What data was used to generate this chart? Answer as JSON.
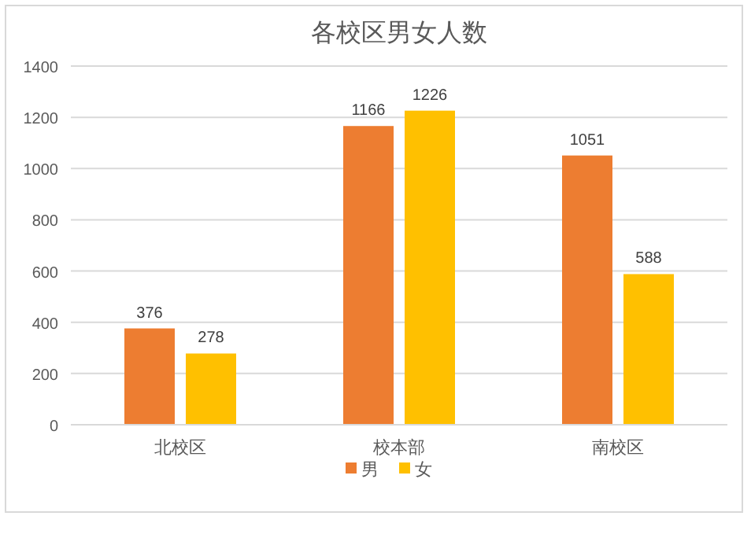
{
  "chart_data": {
    "type": "bar",
    "title": "各校区男女人数",
    "categories": [
      "北校区",
      "校本部",
      "南校区"
    ],
    "series": [
      {
        "name": "男",
        "color": "#ed7d31",
        "values": [
          376,
          1166,
          1051
        ]
      },
      {
        "name": "女",
        "color": "#ffc000",
        "values": [
          278,
          1226,
          588
        ]
      }
    ],
    "ylim": [
      0,
      1400
    ],
    "yticks": [
      0,
      200,
      400,
      600,
      800,
      1000,
      1200,
      1400
    ],
    "grid": "y",
    "legend": "bottom",
    "data_labels": true
  }
}
